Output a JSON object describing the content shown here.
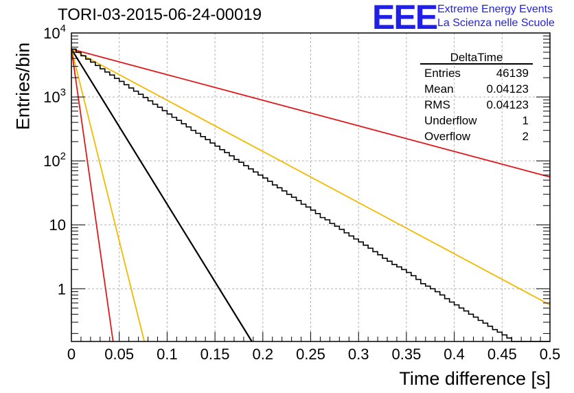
{
  "header": {
    "title": "TORI-03-2015-06-24-00019",
    "logo": "EEE",
    "logo_line1": "Extreme Energy Events",
    "logo_line2": "La Scienza nelle Scuole"
  },
  "colors": {
    "logo": "#1f1fe6",
    "red": "#e01818",
    "orange": "#f5b800",
    "histogram": "#000000",
    "grid": "#b0b0b0"
  },
  "stats": {
    "name": "DeltaTime",
    "rows": [
      {
        "label": "Entries",
        "value": "46139"
      },
      {
        "label": "Mean",
        "value": "0.04123"
      },
      {
        "label": "RMS",
        "value": "0.04123"
      },
      {
        "label": "Underflow",
        "value": "1"
      },
      {
        "label": "Overflow",
        "value": "2"
      }
    ]
  },
  "chart_data": {
    "type": "line",
    "title": "TORI-03-2015-06-24-00019",
    "xlabel": "Time difference [s]",
    "ylabel": "Entries/bin",
    "xlim": [
      0,
      0.5
    ],
    "ylim": [
      0.15,
      10000
    ],
    "yscale": "log",
    "grid": true,
    "xticks": [
      "0",
      "0.05",
      "0.1",
      "0.15",
      "0.2",
      "0.25",
      "0.3",
      "0.35",
      "0.4",
      "0.45",
      "0.5"
    ],
    "xtick_values": [
      0,
      0.05,
      0.1,
      0.15,
      0.2,
      0.25,
      0.3,
      0.35,
      0.4,
      0.45,
      0.5
    ],
    "yticks": [
      {
        "value": 10000,
        "base": "10",
        "exp": "4"
      },
      {
        "value": 1000,
        "base": "10",
        "exp": "3"
      },
      {
        "value": 100,
        "base": "10",
        "exp": "2"
      },
      {
        "value": 10,
        "base": "10",
        "exp": ""
      },
      {
        "value": 1,
        "base": "1",
        "exp": ""
      }
    ],
    "histogram": {
      "bin_width": 0.005,
      "values": [
        5600,
        5000,
        4400,
        3900,
        3500,
        3100,
        2750,
        2450,
        2200,
        1950,
        1750,
        1550,
        1380,
        1230,
        1100,
        980,
        870,
        770,
        690,
        610,
        540,
        480,
        430,
        380,
        340,
        300,
        270,
        240,
        215,
        190,
        170,
        150,
        135,
        120,
        105,
        95,
        84,
        75,
        67,
        60,
        54,
        48,
        42,
        38,
        34,
        30,
        27,
        24,
        21,
        19,
        17,
        15,
        13,
        12,
        10.5,
        9.5,
        8.5,
        7.5,
        6.7,
        6,
        5.4,
        4.8,
        4.3,
        3.8,
        3.4,
        3,
        2.7,
        2.4,
        2.2,
        2,
        1.8,
        1.6,
        1.4,
        1.2,
        1.1,
        1,
        0.9,
        0.8,
        0.7,
        0.62,
        0.56,
        0.5,
        0.45,
        0.4,
        0.36,
        0.32,
        0.29,
        0.26,
        0.23,
        0.21,
        0.19,
        0.17,
        0.15,
        0.14,
        0.12,
        0.11,
        0.1,
        0.09,
        0.08,
        0.07
      ]
    },
    "curves": [
      {
        "color": "red",
        "y0": 5600,
        "slope": -4
      },
      {
        "color": "orange",
        "y0": 5600,
        "slope": -8
      },
      {
        "color": "histogram",
        "y0": 5600,
        "slope": -24.25
      },
      {
        "color": "orange",
        "y0": 5600,
        "slope": -60
      },
      {
        "color": "red",
        "y0": 5600,
        "slope": -105
      }
    ]
  }
}
